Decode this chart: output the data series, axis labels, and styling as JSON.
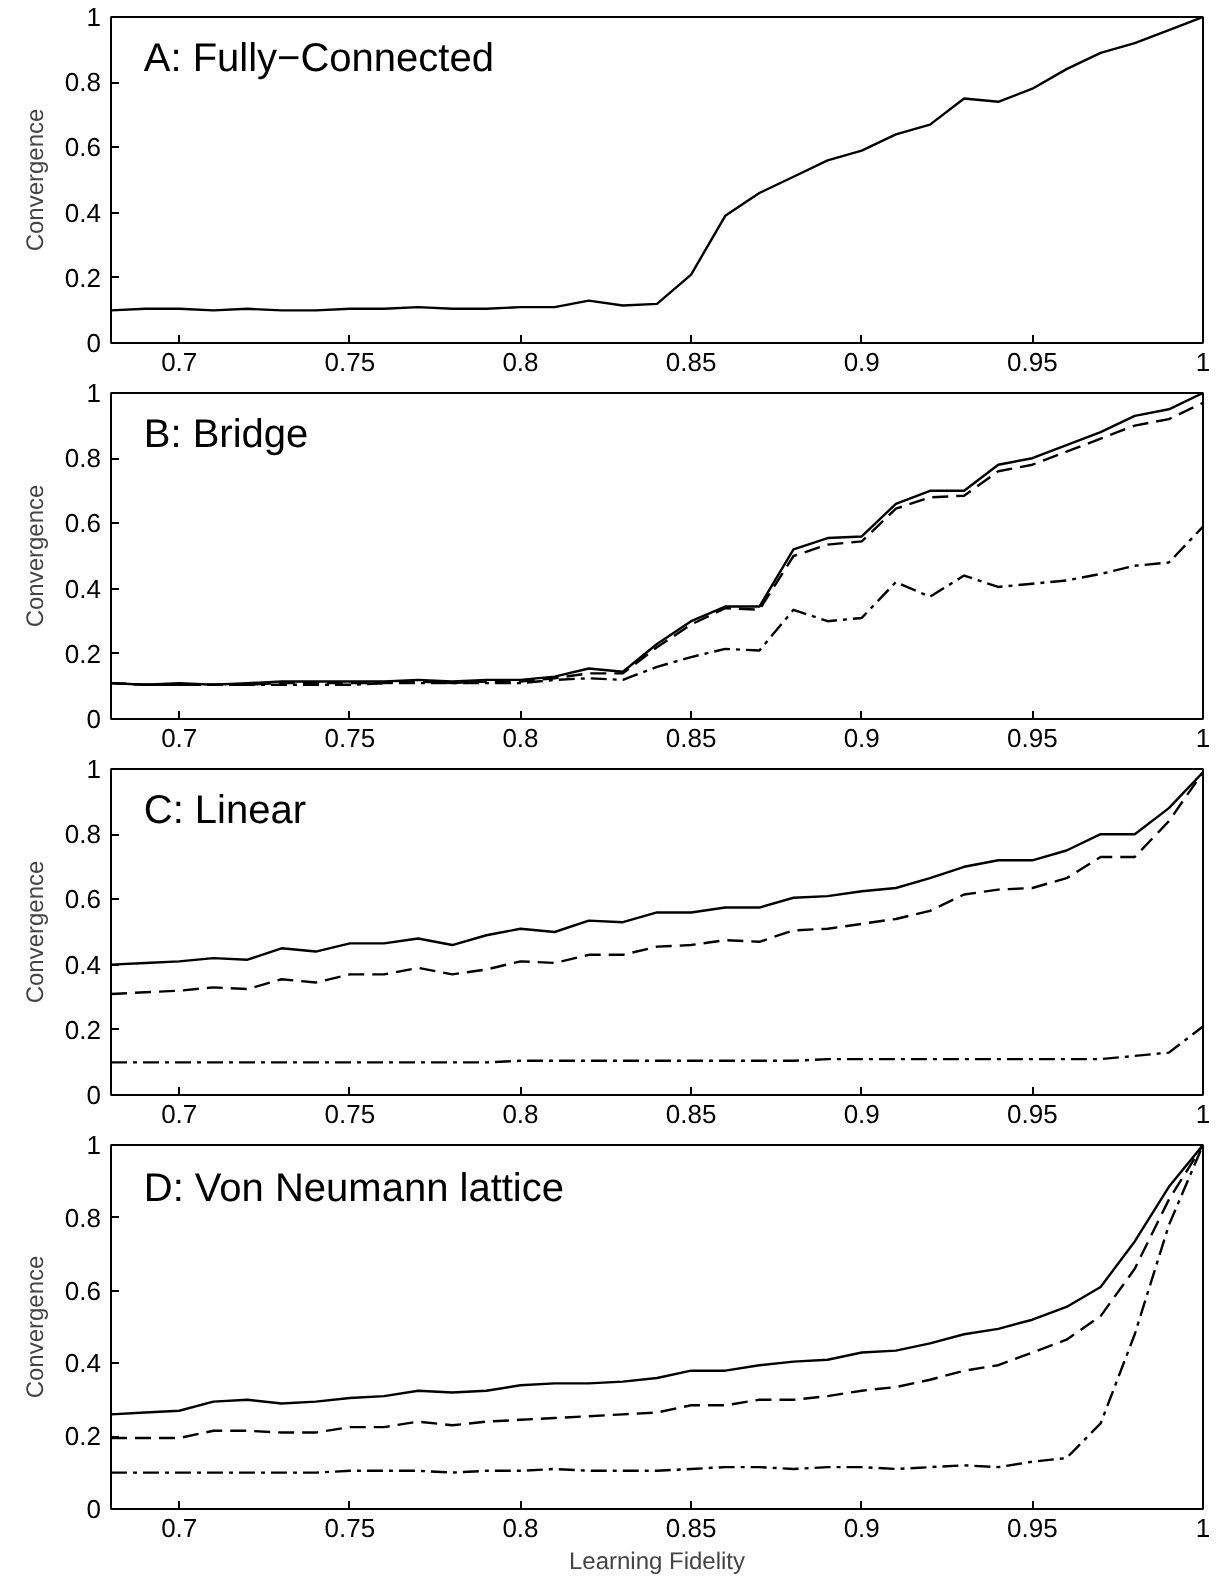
{
  "chart_data": [
    {
      "type": "line",
      "title": "A: Fully−Connected",
      "ylabel": "Convergence",
      "xlim": [
        0.68,
        1.0
      ],
      "ylim": [
        0,
        1
      ],
      "xticks": [
        0.7,
        0.75,
        0.8,
        0.85,
        0.9,
        0.95,
        1
      ],
      "yticks": [
        0,
        0.2,
        0.4,
        0.6,
        0.8,
        1
      ],
      "x": [
        0.68,
        0.69,
        0.7,
        0.71,
        0.72,
        0.73,
        0.74,
        0.75,
        0.76,
        0.77,
        0.78,
        0.79,
        0.8,
        0.81,
        0.82,
        0.83,
        0.84,
        0.85,
        0.86,
        0.87,
        0.88,
        0.89,
        0.9,
        0.91,
        0.92,
        0.93,
        0.94,
        0.95,
        0.96,
        0.97,
        0.98,
        0.99,
        1.0
      ],
      "series": [
        {
          "color": "#000000",
          "line_style": "solid",
          "values": [
            0.1,
            0.105,
            0.105,
            0.1,
            0.105,
            0.1,
            0.1,
            0.105,
            0.105,
            0.11,
            0.105,
            0.105,
            0.11,
            0.11,
            0.13,
            0.115,
            0.12,
            0.21,
            0.39,
            0.46,
            0.51,
            0.56,
            0.59,
            0.64,
            0.67,
            0.75,
            0.74,
            0.78,
            0.84,
            0.89,
            0.92,
            0.96,
            1.0
          ]
        }
      ]
    },
    {
      "type": "line",
      "title": "B: Bridge",
      "ylabel": "Convergence",
      "xlim": [
        0.68,
        1.0
      ],
      "ylim": [
        0,
        1
      ],
      "xticks": [
        0.7,
        0.75,
        0.8,
        0.85,
        0.9,
        0.95,
        1
      ],
      "yticks": [
        0,
        0.2,
        0.4,
        0.6,
        0.8,
        1
      ],
      "x": [
        0.68,
        0.69,
        0.7,
        0.71,
        0.72,
        0.73,
        0.74,
        0.75,
        0.76,
        0.77,
        0.78,
        0.79,
        0.8,
        0.81,
        0.82,
        0.83,
        0.84,
        0.85,
        0.86,
        0.87,
        0.88,
        0.89,
        0.9,
        0.91,
        0.92,
        0.93,
        0.94,
        0.95,
        0.96,
        0.97,
        0.98,
        0.99,
        1.0
      ],
      "series": [
        {
          "color": "#000000",
          "line_style": "solid",
          "values": [
            0.11,
            0.105,
            0.11,
            0.105,
            0.11,
            0.115,
            0.115,
            0.115,
            0.115,
            0.12,
            0.115,
            0.12,
            0.12,
            0.13,
            0.155,
            0.145,
            0.23,
            0.3,
            0.345,
            0.345,
            0.52,
            0.555,
            0.56,
            0.66,
            0.7,
            0.7,
            0.78,
            0.8,
            0.84,
            0.88,
            0.93,
            0.95,
            1.0
          ]
        },
        {
          "color": "#000000",
          "line_style": "dashed",
          "values": [
            0.11,
            0.105,
            0.105,
            0.105,
            0.105,
            0.11,
            0.11,
            0.11,
            0.11,
            0.115,
            0.11,
            0.115,
            0.115,
            0.125,
            0.14,
            0.14,
            0.22,
            0.29,
            0.34,
            0.335,
            0.5,
            0.535,
            0.545,
            0.645,
            0.68,
            0.685,
            0.76,
            0.78,
            0.82,
            0.86,
            0.9,
            0.92,
            0.97
          ]
        },
        {
          "color": "#000000",
          "line_style": "dashdot",
          "values": [
            0.11,
            0.105,
            0.105,
            0.105,
            0.105,
            0.105,
            0.105,
            0.105,
            0.11,
            0.11,
            0.11,
            0.11,
            0.11,
            0.12,
            0.125,
            0.12,
            0.16,
            0.19,
            0.215,
            0.21,
            0.335,
            0.3,
            0.31,
            0.42,
            0.375,
            0.44,
            0.405,
            0.415,
            0.425,
            0.445,
            0.47,
            0.48,
            0.59
          ]
        }
      ]
    },
    {
      "type": "line",
      "title": "C: Linear",
      "ylabel": "Convergence",
      "xlim": [
        0.68,
        1.0
      ],
      "ylim": [
        0,
        1
      ],
      "xticks": [
        0.7,
        0.75,
        0.8,
        0.85,
        0.9,
        0.95,
        1
      ],
      "yticks": [
        0,
        0.2,
        0.4,
        0.6,
        0.8,
        1
      ],
      "x": [
        0.68,
        0.69,
        0.7,
        0.71,
        0.72,
        0.73,
        0.74,
        0.75,
        0.76,
        0.77,
        0.78,
        0.79,
        0.8,
        0.81,
        0.82,
        0.83,
        0.84,
        0.85,
        0.86,
        0.87,
        0.88,
        0.89,
        0.9,
        0.91,
        0.92,
        0.93,
        0.94,
        0.95,
        0.96,
        0.97,
        0.98,
        0.99,
        1.0
      ],
      "series": [
        {
          "color": "#000000",
          "line_style": "solid",
          "values": [
            0.4,
            0.405,
            0.41,
            0.42,
            0.415,
            0.45,
            0.44,
            0.465,
            0.465,
            0.48,
            0.46,
            0.49,
            0.51,
            0.5,
            0.535,
            0.53,
            0.56,
            0.56,
            0.575,
            0.575,
            0.605,
            0.61,
            0.625,
            0.635,
            0.665,
            0.7,
            0.72,
            0.72,
            0.75,
            0.8,
            0.8,
            0.88,
            0.99
          ]
        },
        {
          "color": "#000000",
          "line_style": "dashed",
          "values": [
            0.31,
            0.315,
            0.32,
            0.33,
            0.325,
            0.355,
            0.345,
            0.37,
            0.37,
            0.39,
            0.37,
            0.385,
            0.41,
            0.405,
            0.43,
            0.43,
            0.455,
            0.46,
            0.475,
            0.47,
            0.505,
            0.51,
            0.525,
            0.54,
            0.565,
            0.615,
            0.63,
            0.635,
            0.665,
            0.73,
            0.73,
            0.84,
            0.99
          ]
        },
        {
          "color": "#000000",
          "line_style": "dashdot",
          "values": [
            0.1,
            0.1,
            0.1,
            0.1,
            0.1,
            0.1,
            0.1,
            0.1,
            0.1,
            0.1,
            0.1,
            0.1,
            0.105,
            0.105,
            0.105,
            0.105,
            0.105,
            0.105,
            0.105,
            0.105,
            0.105,
            0.11,
            0.11,
            0.11,
            0.11,
            0.11,
            0.11,
            0.11,
            0.11,
            0.11,
            0.12,
            0.13,
            0.21
          ]
        }
      ]
    },
    {
      "type": "line",
      "title": "D: Von Neumann lattice",
      "xlabel": "Learning Fidelity",
      "ylabel": "Convergence",
      "xlim": [
        0.68,
        1.0
      ],
      "ylim": [
        0,
        1
      ],
      "xticks": [
        0.7,
        0.75,
        0.8,
        0.85,
        0.9,
        0.95,
        1
      ],
      "yticks": [
        0,
        0.2,
        0.4,
        0.6,
        0.8,
        1
      ],
      "x": [
        0.68,
        0.69,
        0.7,
        0.71,
        0.72,
        0.73,
        0.74,
        0.75,
        0.76,
        0.77,
        0.78,
        0.79,
        0.8,
        0.81,
        0.82,
        0.83,
        0.84,
        0.85,
        0.86,
        0.87,
        0.88,
        0.89,
        0.9,
        0.91,
        0.92,
        0.93,
        0.94,
        0.95,
        0.96,
        0.97,
        0.98,
        0.99,
        1.0
      ],
      "series": [
        {
          "color": "#000000",
          "line_style": "solid",
          "values": [
            0.26,
            0.265,
            0.27,
            0.295,
            0.3,
            0.29,
            0.295,
            0.305,
            0.31,
            0.325,
            0.32,
            0.325,
            0.34,
            0.345,
            0.345,
            0.35,
            0.36,
            0.38,
            0.38,
            0.395,
            0.405,
            0.41,
            0.43,
            0.435,
            0.455,
            0.48,
            0.495,
            0.52,
            0.555,
            0.61,
            0.735,
            0.885,
            1.0
          ]
        },
        {
          "color": "#000000",
          "line_style": "dashed",
          "values": [
            0.195,
            0.195,
            0.195,
            0.215,
            0.215,
            0.21,
            0.21,
            0.225,
            0.225,
            0.24,
            0.23,
            0.24,
            0.245,
            0.25,
            0.255,
            0.26,
            0.265,
            0.285,
            0.285,
            0.3,
            0.3,
            0.31,
            0.325,
            0.335,
            0.355,
            0.38,
            0.395,
            0.43,
            0.465,
            0.53,
            0.66,
            0.85,
            1.0
          ]
        },
        {
          "color": "#000000",
          "line_style": "dashdot",
          "values": [
            0.1,
            0.1,
            0.1,
            0.1,
            0.1,
            0.1,
            0.1,
            0.105,
            0.105,
            0.105,
            0.1,
            0.105,
            0.105,
            0.11,
            0.105,
            0.105,
            0.105,
            0.11,
            0.115,
            0.115,
            0.11,
            0.115,
            0.115,
            0.11,
            0.115,
            0.12,
            0.115,
            0.13,
            0.14,
            0.235,
            0.48,
            0.78,
            1.0
          ]
        }
      ]
    }
  ]
}
